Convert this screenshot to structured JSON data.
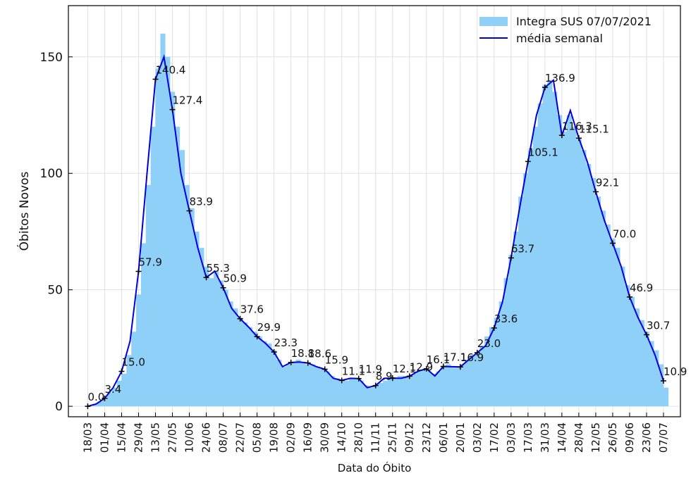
{
  "chart_data": {
    "type": "bar_line",
    "xlabel": "Data do Óbito",
    "ylabel": "Óbitos Novos",
    "xlim": [
      -16,
      490
    ],
    "ylim": [
      -4.5,
      172
    ],
    "xticks": [
      {
        "value": 0,
        "label": "18/03"
      },
      {
        "value": 14,
        "label": "01/04"
      },
      {
        "value": 28,
        "label": "15/04"
      },
      {
        "value": 42,
        "label": "29/04"
      },
      {
        "value": 56,
        "label": "13/05"
      },
      {
        "value": 70,
        "label": "27/05"
      },
      {
        "value": 84,
        "label": "10/06"
      },
      {
        "value": 98,
        "label": "24/06"
      },
      {
        "value": 112,
        "label": "08/07"
      },
      {
        "value": 126,
        "label": "22/07"
      },
      {
        "value": 140,
        "label": "05/08"
      },
      {
        "value": 154,
        "label": "19/08"
      },
      {
        "value": 168,
        "label": "02/09"
      },
      {
        "value": 182,
        "label": "16/09"
      },
      {
        "value": 196,
        "label": "30/09"
      },
      {
        "value": 210,
        "label": "14/10"
      },
      {
        "value": 224,
        "label": "28/10"
      },
      {
        "value": 238,
        "label": "11/11"
      },
      {
        "value": 252,
        "label": "25/11"
      },
      {
        "value": 266,
        "label": "09/12"
      },
      {
        "value": 280,
        "label": "23/12"
      },
      {
        "value": 294,
        "label": "06/01"
      },
      {
        "value": 308,
        "label": "20/01"
      },
      {
        "value": 322,
        "label": "03/02"
      },
      {
        "value": 336,
        "label": "17/02"
      },
      {
        "value": 350,
        "label": "03/03"
      },
      {
        "value": 364,
        "label": "17/03"
      },
      {
        "value": 378,
        "label": "31/03"
      },
      {
        "value": 392,
        "label": "14/04"
      },
      {
        "value": 406,
        "label": "28/04"
      },
      {
        "value": 420,
        "label": "12/05"
      },
      {
        "value": 434,
        "label": "26/05"
      },
      {
        "value": 448,
        "label": "09/06"
      },
      {
        "value": 462,
        "label": "23/06"
      },
      {
        "value": 476,
        "label": "07/07"
      }
    ],
    "yticks": [
      0,
      50,
      100,
      150
    ],
    "grid": true,
    "legend": "upper right",
    "series": [
      {
        "name": "Integra SUS 07/07/2021",
        "type": "bar",
        "color": "#8fd0f8",
        "width": 4,
        "x": [
          0,
          4,
          8,
          12,
          16,
          20,
          24,
          28,
          32,
          36,
          40,
          44,
          48,
          52,
          56,
          60,
          64,
          68,
          72,
          76,
          80,
          84,
          88,
          92,
          96,
          100,
          104,
          108,
          112,
          116,
          120,
          124,
          128,
          132,
          136,
          140,
          144,
          148,
          152,
          156,
          160,
          164,
          168,
          172,
          176,
          180,
          184,
          188,
          192,
          196,
          200,
          204,
          208,
          212,
          216,
          220,
          224,
          228,
          232,
          236,
          240,
          244,
          248,
          252,
          256,
          260,
          264,
          268,
          272,
          276,
          280,
          284,
          288,
          292,
          296,
          300,
          304,
          308,
          312,
          316,
          320,
          324,
          328,
          332,
          336,
          340,
          344,
          348,
          352,
          356,
          360,
          364,
          368,
          372,
          376,
          380,
          384,
          388,
          392,
          396,
          400,
          404,
          408,
          412,
          416,
          420,
          424,
          428,
          432,
          436,
          440,
          444,
          448,
          452,
          456,
          460,
          464,
          468,
          472,
          476
        ],
        "values": [
          0,
          1,
          2,
          3,
          6,
          8,
          11,
          14,
          22,
          32,
          48,
          70,
          95,
          120,
          145,
          160,
          150,
          135,
          120,
          110,
          95,
          85,
          75,
          68,
          60,
          55,
          58,
          54,
          50,
          45,
          42,
          38,
          36,
          34,
          32,
          30,
          28,
          27,
          24,
          20,
          17,
          18,
          19,
          20,
          19,
          18,
          18,
          17,
          16,
          15,
          13,
          12,
          11,
          11,
          12,
          12,
          11,
          9,
          8,
          9,
          10,
          11,
          12,
          12,
          13,
          13,
          13,
          14,
          15,
          16,
          15,
          14,
          15,
          17,
          18,
          17,
          17,
          18,
          20,
          22,
          23,
          26,
          30,
          34,
          38,
          45,
          55,
          65,
          75,
          90,
          100,
          110,
          120,
          130,
          138,
          140,
          135,
          125,
          118,
          125,
          120,
          115,
          110,
          104,
          98,
          90,
          84,
          78,
          72,
          68,
          60,
          52,
          47,
          42,
          37,
          32,
          28,
          24,
          18,
          8
        ]
      },
      {
        "name": "média  semanal",
        "type": "line",
        "color": "#0000dd",
        "x": [
          0,
          7,
          14,
          21,
          28,
          35,
          42,
          49,
          56,
          63,
          70,
          77,
          84,
          91,
          98,
          105,
          112,
          119,
          126,
          133,
          140,
          147,
          154,
          161,
          168,
          175,
          182,
          189,
          196,
          203,
          210,
          217,
          224,
          231,
          238,
          245,
          252,
          259,
          266,
          273,
          280,
          287,
          294,
          301,
          308,
          315,
          322,
          329,
          336,
          343,
          350,
          357,
          364,
          371,
          378,
          385,
          392,
          399,
          406,
          413,
          420,
          427,
          434,
          441,
          448,
          455,
          462,
          469,
          476
        ],
        "values": [
          0,
          1,
          3.4,
          8,
          15,
          28,
          57.9,
          100,
          140.4,
          150,
          127.4,
          100,
          83.9,
          68,
          55.3,
          58,
          50.9,
          42,
          37.6,
          34,
          29.9,
          27,
          23.3,
          17,
          18.8,
          19,
          18.6,
          17,
          15.9,
          12,
          11.1,
          12,
          11.9,
          8,
          8.9,
          12,
          12.1,
          12,
          12.9,
          15,
          16.1,
          13,
          17.1,
          17,
          16.9,
          20,
          23,
          26,
          33.6,
          45,
          63.7,
          85,
          105.1,
          125,
          136.9,
          140,
          116.3,
          127,
          115.1,
          105,
          92.1,
          80,
          70,
          60,
          46.9,
          38,
          30.7,
          22,
          10.9
        ]
      }
    ],
    "annotations": {
      "x": [
        0,
        14,
        28,
        42,
        56,
        70,
        84,
        98,
        112,
        126,
        140,
        154,
        168,
        182,
        196,
        210,
        224,
        238,
        252,
        266,
        280,
        294,
        308,
        322,
        336,
        350,
        364,
        378,
        392,
        406,
        420,
        434,
        448,
        462,
        476
      ],
      "values": [
        0,
        3.4,
        15,
        57.9,
        140.4,
        127.4,
        83.9,
        55.3,
        50.9,
        37.6,
        29.9,
        23.3,
        18.8,
        18.6,
        15.9,
        11.1,
        11.9,
        8.9,
        12.1,
        12.9,
        16.1,
        17.1,
        16.9,
        23,
        33.6,
        63.7,
        105.1,
        136.9,
        116.3,
        115.1,
        92.1,
        70,
        46.9,
        30.7,
        10.9
      ],
      "value_labels": [
        "0.0",
        "3.4",
        "15.0",
        "57.9",
        "140.4",
        "127.4",
        "83.9",
        "55.3",
        "50.9",
        "37.6",
        "29.9",
        "23.3",
        "18.8",
        "18.6",
        "15.9",
        "11.1",
        "11.9",
        "8.9",
        "12.1",
        "12.9",
        "16.1",
        "17.1",
        "16.9",
        "23.0",
        "33.6",
        "63.7",
        "105.1",
        "136.9",
        "116.3",
        "115.1",
        "92.1",
        "70.0",
        "46.9",
        "30.7",
        "10.9"
      ]
    }
  }
}
